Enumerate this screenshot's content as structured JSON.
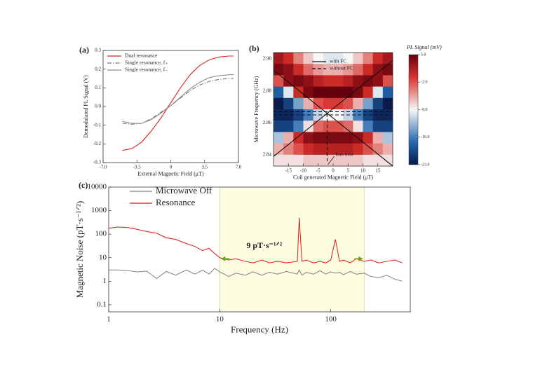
{
  "chart_data": [
    {
      "type": "line",
      "label": "(a)",
      "xlabel": "External Magnetic Field (μT)",
      "ylabel": "Demodulated PL Signal (V)",
      "x": [
        -5,
        -4,
        -3,
        -2,
        -1,
        0,
        1,
        2,
        3,
        4,
        5,
        6,
        6.5
      ],
      "series": [
        {
          "name": "Dual resonance",
          "color": "#e02020",
          "dash": "solid",
          "values": [
            -0.235,
            -0.225,
            -0.19,
            -0.13,
            -0.06,
            0.02,
            0.1,
            0.17,
            0.22,
            0.25,
            0.265,
            0.27,
            0.27
          ]
        },
        {
          "name": "Single resonance, f₊",
          "color": "#777777",
          "dash": "dashdot",
          "values": [
            -0.09,
            -0.095,
            -0.09,
            -0.065,
            -0.03,
            0.005,
            0.045,
            0.085,
            0.115,
            0.135,
            0.145,
            0.15,
            0.15
          ]
        },
        {
          "name": "Single resonance, f₋",
          "color": "#8a8a8a",
          "dash": "solid",
          "values": [
            -0.08,
            -0.09,
            -0.09,
            -0.07,
            -0.035,
            0.005,
            0.05,
            0.095,
            0.13,
            0.155,
            0.165,
            0.17,
            0.17
          ]
        }
      ],
      "xlim": [
        -7,
        7
      ],
      "xticks": [
        {
          "value": -7,
          "label": "-7.0"
        },
        {
          "value": -3.5,
          "label": "-3.5"
        },
        0,
        {
          "value": 3.5,
          "label": "3.5"
        },
        {
          "value": 7,
          "label": "7.0"
        }
      ],
      "ylim": [
        -0.3,
        0.3
      ],
      "yticks": [
        -0.3,
        -0.2,
        -0.1,
        {
          "value": 0,
          "label": "0.0"
        },
        0.1,
        0.2,
        0.3
      ],
      "legend": "upper left"
    },
    {
      "type": "heatmap",
      "label": "(b)",
      "xlabel": "Coil generated Magnetic Field (μT)",
      "ylabel": "Microwave Frequency (GHz)",
      "colorbar_label": "PL Signal (mV)",
      "colormap": "blue-white-red",
      "z": [
        [
          2,
          0,
          -4,
          -7,
          -9,
          -10,
          -10,
          -9,
          -7,
          -4,
          0,
          2
        ],
        [
          4,
          3,
          0,
          -3,
          -5,
          -6,
          -6,
          -5,
          -3,
          0,
          3,
          4
        ],
        [
          -2,
          3,
          4,
          3,
          1,
          0,
          0,
          1,
          3,
          4,
          3,
          -2
        ],
        [
          -18,
          -10,
          0,
          4,
          5,
          5,
          5,
          5,
          4,
          0,
          -10,
          -18
        ],
        [
          -23,
          -20,
          -14,
          -6,
          -2,
          -1,
          -1,
          -2,
          -6,
          -14,
          -20,
          -23
        ],
        [
          -22,
          -22,
          -20,
          -16,
          -11,
          -9,
          -9,
          -11,
          -16,
          -20,
          -22,
          -22
        ],
        [
          -20,
          -20,
          -16,
          -8,
          -3,
          -2,
          -2,
          -3,
          -8,
          -16,
          -20,
          -20
        ],
        [
          -12,
          -6,
          0,
          3,
          4,
          4,
          4,
          4,
          3,
          0,
          -6,
          -12
        ],
        [
          -6,
          -4,
          -2,
          0,
          1,
          1,
          1,
          1,
          0,
          -2,
          -4,
          -6
        ],
        [
          -8,
          -8,
          -8,
          -7,
          -7,
          -7,
          -7,
          -7,
          -7,
          -8,
          -8,
          -8
        ]
      ],
      "clim": [
        -23,
        5
      ],
      "cticks": [
        {
          "value": 5,
          "label": "5.0"
        },
        {
          "value": -2,
          "label": "-2.0"
        },
        {
          "value": -9,
          "label": "-9.0"
        },
        {
          "value": -16,
          "label": "-16.0"
        },
        {
          "value": -23,
          "label": "-23.0"
        }
      ],
      "series": [
        {
          "name": "with FC",
          "color": "#111111",
          "dash": "solid",
          "x": [
            -20,
            20,
            null,
            -20,
            20
          ],
          "values": [
            2.893,
            2.833,
            null,
            2.839,
            2.899
          ]
        },
        {
          "name": "without FC",
          "color": "#111111",
          "dash": "dashed",
          "x": [
            -20,
            20,
            null,
            -20,
            20,
            null,
            -2,
            -2
          ],
          "values": [
            2.867,
            2.867,
            null,
            2.865,
            2.865,
            null,
            2.866,
            2.836
          ]
        }
      ],
      "annotation": "Bias field",
      "xlim": [
        -20,
        20
      ],
      "xticks": [
        -15,
        -10,
        -5,
        0,
        5,
        10,
        15
      ],
      "ylim": [
        2.833,
        2.904
      ],
      "yticks": [
        {
          "value": 2.84,
          "label": "2.84"
        },
        {
          "value": 2.86,
          "label": "2.86"
        },
        {
          "value": 2.88,
          "label": "2.88"
        },
        {
          "value": 2.9,
          "label": "2.90"
        }
      ],
      "legend": "upper center"
    },
    {
      "type": "line",
      "label": "(c)",
      "xlabel": "Frequency (Hz)",
      "ylabel": "Magnetic Noise (pT·s⁻¹ᐟ²)",
      "x": [
        1,
        1.2,
        1.5,
        1.8,
        2.2,
        2.7,
        3.3,
        4,
        5,
        6,
        7,
        8,
        9,
        10,
        12,
        14,
        17,
        20,
        24,
        28,
        33,
        40,
        50,
        52,
        55,
        60,
        70,
        80,
        90,
        100,
        110,
        120,
        130,
        150,
        170,
        200,
        230,
        270,
        320,
        380,
        440
      ],
      "series": [
        {
          "name": "Microwave Off",
          "color": "#808080",
          "dash": "solid",
          "values": [
            3,
            3,
            2.8,
            2.5,
            2.7,
            1.3,
            2.6,
            1.8,
            3,
            2,
            3,
            2,
            3.5,
            2.5,
            1.6,
            2.2,
            1.8,
            2.5,
            1.8,
            2.4,
            2,
            2.6,
            2,
            3,
            1.8,
            2.4,
            2,
            2.8,
            2,
            2.5,
            2.2,
            2.4,
            1.9,
            2.6,
            2,
            2.2,
            1.6,
            1.4,
            1.8,
            1.2,
            1
          ]
        },
        {
          "name": "Resonance",
          "color": "#e8141b",
          "dash": "solid",
          "values": [
            180,
            200,
            190,
            160,
            130,
            110,
            70,
            60,
            40,
            30,
            20,
            25,
            15,
            10,
            8,
            9,
            7,
            6,
            8,
            6,
            7,
            6,
            7,
            500,
            7,
            8,
            6,
            7,
            6,
            8,
            60,
            7,
            8,
            6,
            9,
            7,
            8,
            6,
            7,
            8,
            6
          ]
        }
      ],
      "band": [
        10,
        200
      ],
      "band_color": "#fdfde2",
      "annotation": {
        "text": "9 pT·s⁻¹ᐟ²",
        "value": 9,
        "color": "#6aa01e"
      },
      "xscale": "log",
      "yscale": "log",
      "xlim": [
        1,
        520
      ],
      "xticks": [
        1,
        10,
        100
      ],
      "ylim": [
        0.05,
        10000
      ],
      "yticks": [
        0.1,
        1,
        10,
        100,
        1000,
        10000
      ],
      "legend": "upper left"
    }
  ]
}
